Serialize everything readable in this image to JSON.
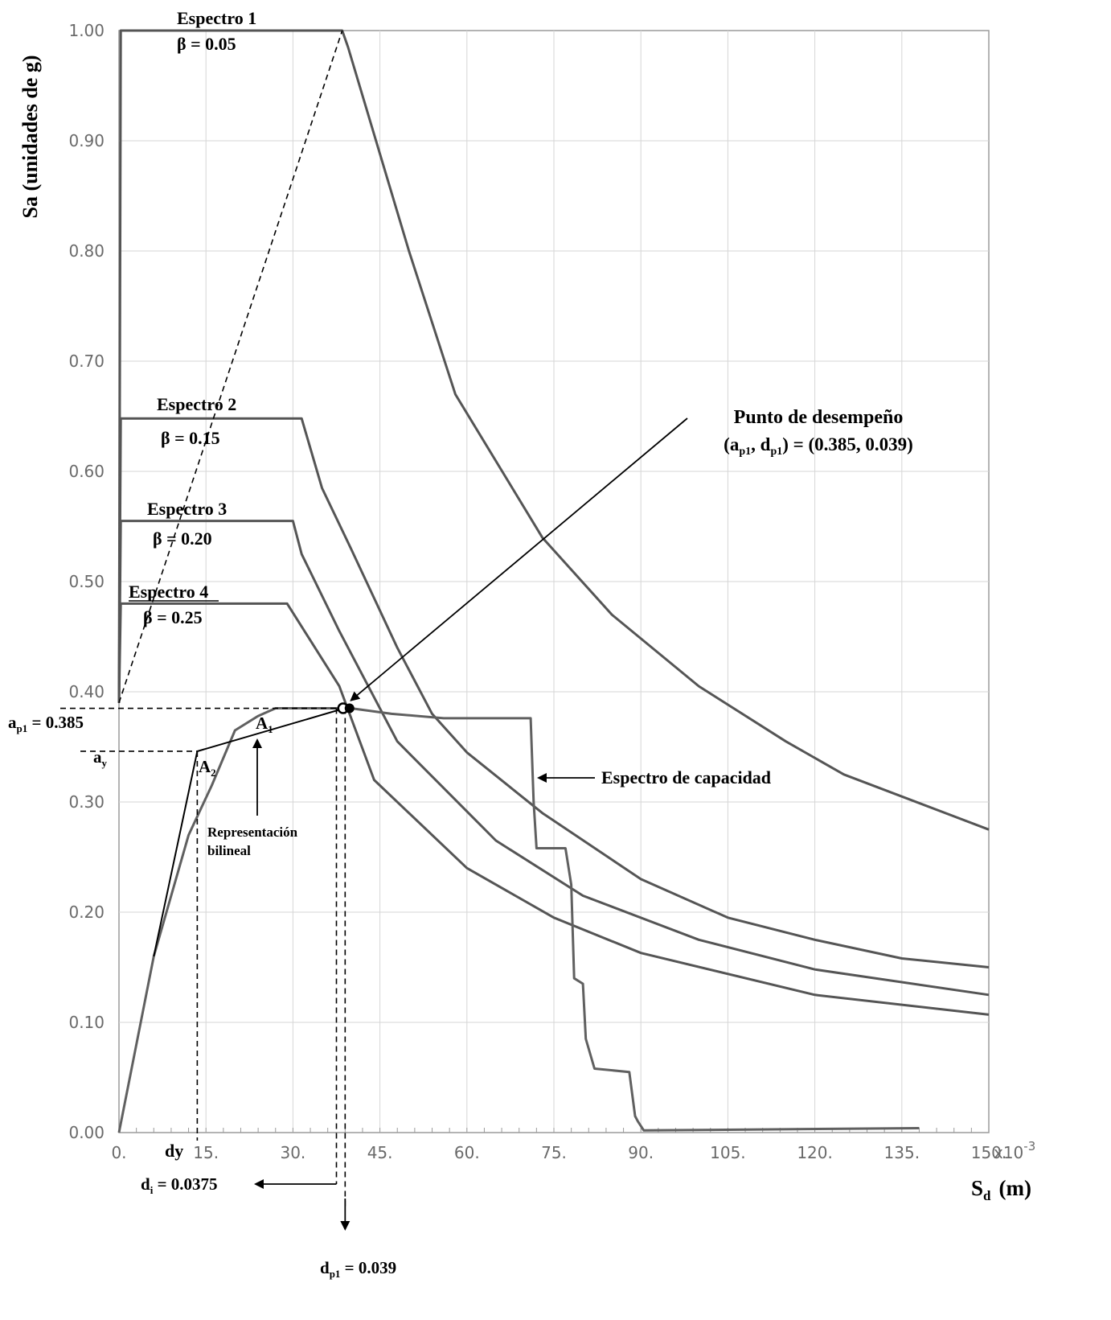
{
  "chart_data": {
    "type": "line",
    "ylabel": "Sa  (unidades de g)",
    "xlabel": "S",
    "xlabel_sub": "d",
    "xlabel_unit": "(m)",
    "x_multiplier": "x10",
    "x_multiplier_exp": "-3",
    "xlim": [
      0,
      150
    ],
    "ylim": [
      0,
      1.0
    ],
    "grid": true,
    "x_ticks": [
      "0.",
      "15.",
      "30.",
      "45.",
      "60.",
      "75.",
      "90.",
      "105.",
      "120.",
      "135.",
      "150."
    ],
    "y_ticks": [
      "0.00",
      "0.10",
      "0.20",
      "0.30",
      "0.40",
      "0.50",
      "0.60",
      "0.70",
      "0.80",
      "0.90",
      "1.00"
    ],
    "series": [
      {
        "name": "Espectro 1",
        "beta": "β = 0.05",
        "x": [
          0,
          0.3,
          38.5,
          39.5,
          50,
          58,
          73,
          85,
          100,
          115,
          125,
          150
        ],
        "y": [
          0.39,
          1.0,
          1.0,
          0.985,
          0.8,
          0.67,
          0.54,
          0.47,
          0.405,
          0.355,
          0.325,
          0.275
        ]
      },
      {
        "name": "Espectro 2",
        "beta": "β = 0.15",
        "x": [
          0,
          0.3,
          31.5,
          35,
          40,
          48,
          54,
          60,
          73,
          90,
          105,
          120,
          135,
          150
        ],
        "y": [
          0.39,
          0.648,
          0.648,
          0.585,
          0.53,
          0.44,
          0.38,
          0.345,
          0.29,
          0.23,
          0.195,
          0.175,
          0.158,
          0.15
        ]
      },
      {
        "name": "Espectro 3",
        "beta": "β = 0.20",
        "x": [
          0,
          0.3,
          30,
          31.5,
          38,
          48,
          65,
          80,
          100,
          120,
          150
        ],
        "y": [
          0.39,
          0.555,
          0.555,
          0.525,
          0.455,
          0.355,
          0.265,
          0.215,
          0.175,
          0.148,
          0.125
        ]
      },
      {
        "name": "Espectro 4",
        "beta": "β = 0.25",
        "x": [
          0,
          0.3,
          29,
          38,
          44,
          60,
          75,
          90,
          120,
          150
        ],
        "y": [
          0.39,
          0.48,
          0.48,
          0.405,
          0.32,
          0.24,
          0.195,
          0.163,
          0.125,
          0.107
        ]
      },
      {
        "name": "Espectro de capacidad",
        "x": [
          0,
          6,
          12,
          16,
          20,
          24,
          27,
          34,
          40,
          47,
          56,
          71,
          71.5,
          72,
          77,
          78,
          78.5,
          80,
          80.5,
          82,
          88,
          89,
          89.5,
          90.5,
          138
        ],
        "y": [
          0,
          0.16,
          0.27,
          0.315,
          0.365,
          0.378,
          0.385,
          0.385,
          0.385,
          0.38,
          0.376,
          0.376,
          0.3,
          0.258,
          0.258,
          0.225,
          0.14,
          0.135,
          0.085,
          0.058,
          0.055,
          0.015,
          0.01,
          0.002,
          0.004
        ]
      },
      {
        "name": "Representación bilineal",
        "x": [
          6,
          13.5,
          38.9
        ],
        "y": [
          0.16,
          0.346,
          0.385
        ]
      }
    ],
    "annotations": {
      "performance_title": "Punto de desempeño",
      "performance_value": "(ap1, dp1) = (0.385, 0.039)",
      "pp": {
        "x": 39.2,
        "y": 0.385
      },
      "ap1_label": "ap1 = 0.385",
      "ay_label": "ay",
      "A1_label": "A1",
      "A2_label": "A2",
      "bilinear_label_1": "Representación",
      "bilinear_label_2": "bilineal",
      "capacity_label": "Espectro de capacidad",
      "dy_label": "dy",
      "di_label": "di = 0.0375",
      "dp1_label": "dp1 = 0.039",
      "ay_value": 0.346,
      "dy_value": 13.5,
      "di_value": 37.5,
      "dp1_value": 39
    }
  }
}
